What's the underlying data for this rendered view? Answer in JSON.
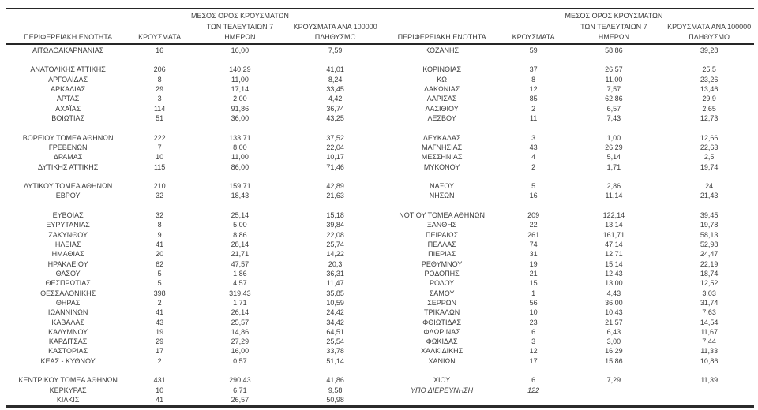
{
  "colors": {
    "text": "#3c3c3c",
    "rule": "#262626",
    "background": "#ffffff"
  },
  "headers": {
    "region": "ΠΕΡΙΦΕΡΕΙΑΚΗ ΕΝΟΤΗΤΑ",
    "cases": "ΚΡΟΥΣΜΑΤΑ",
    "avg7_line1": "ΜΕΣΟΣ ΟΡΟΣ ΚΡΟΥΣΜΑΤΩΝ",
    "avg7_line2": "ΤΩΝ ΤΕΛΕΥΤΑΙΩΝ 7",
    "avg7_line3": "ΗΜΕΡΩΝ",
    "per100k_line1": "ΚΡΟΥΣΜΑΤΑ ΑΝΑ 100000",
    "per100k_line2": "ΠΛΗΘΥΣΜΟ"
  },
  "left_table": {
    "rows": [
      {
        "region": "ΑΙΤΩΛΟΑΚΑΡΝΑΝΙΑΣ",
        "cases": "16",
        "avg7": "16,00",
        "per100k": "7,59"
      },
      null,
      {
        "region": "ΑΝΑΤΟΛΙΚΗΣ ΑΤΤΙΚΗΣ",
        "cases": "206",
        "avg7": "140,29",
        "per100k": "41,01"
      },
      {
        "region": "ΑΡΓΟΛΙΔΑΣ",
        "cases": "8",
        "avg7": "11,00",
        "per100k": "8,24"
      },
      {
        "region": "ΑΡΚΑΔΙΑΣ",
        "cases": "29",
        "avg7": "17,14",
        "per100k": "33,45"
      },
      {
        "region": "ΑΡΤΑΣ",
        "cases": "3",
        "avg7": "2,00",
        "per100k": "4,42"
      },
      {
        "region": "ΑΧΑΪΑΣ",
        "cases": "114",
        "avg7": "91,86",
        "per100k": "36,74"
      },
      {
        "region": "ΒΟΙΩΤΙΑΣ",
        "cases": "51",
        "avg7": "36,00",
        "per100k": "43,25"
      },
      null,
      {
        "region": "ΒΟΡΕΙΟΥ ΤΟΜΕΑ ΑΘΗΝΩΝ",
        "cases": "222",
        "avg7": "133,71",
        "per100k": "37,52"
      },
      {
        "region": "ΓΡΕΒΕΝΩΝ",
        "cases": "7",
        "avg7": "8,00",
        "per100k": "22,04"
      },
      {
        "region": "ΔΡΑΜΑΣ",
        "cases": "10",
        "avg7": "11,00",
        "per100k": "10,17"
      },
      {
        "region": "ΔΥΤΙΚΗΣ ΑΤΤΙΚΗΣ",
        "cases": "115",
        "avg7": "86,00",
        "per100k": "71,46"
      },
      null,
      {
        "region": "ΔΥΤΙΚΟΥ ΤΟΜΕΑ ΑΘΗΝΩΝ",
        "cases": "210",
        "avg7": "159,71",
        "per100k": "42,89"
      },
      {
        "region": "ΕΒΡΟΥ",
        "cases": "32",
        "avg7": "18,43",
        "per100k": "21,63"
      },
      null,
      {
        "region": "ΕΥΒΟΙΑΣ",
        "cases": "32",
        "avg7": "25,14",
        "per100k": "15,18"
      },
      {
        "region": "ΕΥΡΥΤΑΝΙΑΣ",
        "cases": "8",
        "avg7": "5,00",
        "per100k": "39,84"
      },
      {
        "region": "ΖΑΚΥΝΘΟΥ",
        "cases": "9",
        "avg7": "8,86",
        "per100k": "22,08"
      },
      {
        "region": "ΗΛΕΙΑΣ",
        "cases": "41",
        "avg7": "28,14",
        "per100k": "25,74"
      },
      {
        "region": "ΗΜΑΘΙΑΣ",
        "cases": "20",
        "avg7": "21,71",
        "per100k": "14,22"
      },
      {
        "region": "ΗΡΑΚΛΕΙΟΥ",
        "cases": "62",
        "avg7": "47,57",
        "per100k": "20,3"
      },
      {
        "region": "ΘΑΣΟΥ",
        "cases": "5",
        "avg7": "1,86",
        "per100k": "36,31"
      },
      {
        "region": "ΘΕΣΠΡΩΤΙΑΣ",
        "cases": "5",
        "avg7": "4,57",
        "per100k": "11,47"
      },
      {
        "region": "ΘΕΣΣΑΛΟΝΙΚΗΣ",
        "cases": "398",
        "avg7": "319,43",
        "per100k": "35,85"
      },
      {
        "region": "ΘΗΡΑΣ",
        "cases": "2",
        "avg7": "1,71",
        "per100k": "10,59"
      },
      {
        "region": "ΙΩΑΝΝΙΝΩΝ",
        "cases": "41",
        "avg7": "26,14",
        "per100k": "24,42"
      },
      {
        "region": "ΚΑΒΑΛΑΣ",
        "cases": "43",
        "avg7": "25,57",
        "per100k": "34,42"
      },
      {
        "region": "ΚΑΛΥΜΝΟΥ",
        "cases": "19",
        "avg7": "14,86",
        "per100k": "64,51"
      },
      {
        "region": "ΚΑΡΔΙΤΣΑΣ",
        "cases": "29",
        "avg7": "27,29",
        "per100k": "25,54"
      },
      {
        "region": "ΚΑΣΤΟΡΙΑΣ",
        "cases": "17",
        "avg7": "16,00",
        "per100k": "33,78"
      },
      {
        "region": "ΚΕΑΣ - ΚΥΘΝΟΥ",
        "cases": "2",
        "avg7": "0,57",
        "per100k": "51,14"
      },
      null,
      {
        "region": "ΚΕΝΤΡΙΚΟΥ ΤΟΜΕΑ ΑΘΗΝΩΝ",
        "cases": "431",
        "avg7": "290,43",
        "per100k": "41,86"
      },
      {
        "region": "ΚΕΡΚΥΡΑΣ",
        "cases": "10",
        "avg7": "6,71",
        "per100k": "9,58"
      },
      {
        "region": "ΚΙΛΚΙΣ",
        "cases": "41",
        "avg7": "26,57",
        "per100k": "50,98"
      }
    ]
  },
  "right_table": {
    "rows": [
      {
        "region": "ΚΟΖΑΝΗΣ",
        "cases": "59",
        "avg7": "58,86",
        "per100k": "39,28"
      },
      null,
      {
        "region": "ΚΟΡΙΝΘΙΑΣ",
        "cases": "37",
        "avg7": "26,57",
        "per100k": "25,5"
      },
      {
        "region": "ΚΩ",
        "cases": "8",
        "avg7": "11,00",
        "per100k": "23,26"
      },
      {
        "region": "ΛΑΚΩΝΙΑΣ",
        "cases": "12",
        "avg7": "7,57",
        "per100k": "13,46"
      },
      {
        "region": "ΛΑΡΙΣΑΣ",
        "cases": "85",
        "avg7": "62,86",
        "per100k": "29,9"
      },
      {
        "region": "ΛΑΣΙΘΙΟΥ",
        "cases": "2",
        "avg7": "6,57",
        "per100k": "2,65"
      },
      {
        "region": "ΛΕΣΒΟΥ",
        "cases": "11",
        "avg7": "7,43",
        "per100k": "12,73"
      },
      null,
      {
        "region": "ΛΕΥΚΑΔΑΣ",
        "cases": "3",
        "avg7": "1,00",
        "per100k": "12,66"
      },
      {
        "region": "ΜΑΓΝΗΣΙΑΣ",
        "cases": "43",
        "avg7": "26,29",
        "per100k": "22,63"
      },
      {
        "region": "ΜΕΣΣΗΝΙΑΣ",
        "cases": "4",
        "avg7": "5,14",
        "per100k": "2,5"
      },
      {
        "region": "ΜΥΚΟΝΟΥ",
        "cases": "2",
        "avg7": "1,71",
        "per100k": "19,74"
      },
      null,
      {
        "region": "ΝΑΞΟΥ",
        "cases": "5",
        "avg7": "2,86",
        "per100k": "24"
      },
      {
        "region": "ΝΗΣΩΝ",
        "cases": "16",
        "avg7": "11,14",
        "per100k": "21,43"
      },
      null,
      {
        "region": "ΝΟΤΙΟΥ ΤΟΜΕΑ ΑΘΗΝΩΝ",
        "cases": "209",
        "avg7": "122,14",
        "per100k": "39,45"
      },
      {
        "region": "ΞΑΝΘΗΣ",
        "cases": "22",
        "avg7": "13,14",
        "per100k": "19,78"
      },
      {
        "region": "ΠΕΙΡΑΙΩΣ",
        "cases": "261",
        "avg7": "161,71",
        "per100k": "58,13"
      },
      {
        "region": "ΠΕΛΛΑΣ",
        "cases": "74",
        "avg7": "47,14",
        "per100k": "52,98"
      },
      {
        "region": "ΠΙΕΡΙΑΣ",
        "cases": "31",
        "avg7": "12,71",
        "per100k": "24,47"
      },
      {
        "region": "ΡΕΘΥΜΝΟΥ",
        "cases": "19",
        "avg7": "15,14",
        "per100k": "22,19"
      },
      {
        "region": "ΡΟΔΟΠΗΣ",
        "cases": "21",
        "avg7": "12,43",
        "per100k": "18,74"
      },
      {
        "region": "ΡΟΔΟΥ",
        "cases": "15",
        "avg7": "13,00",
        "per100k": "12,52"
      },
      {
        "region": "ΣΑΜΟΥ",
        "cases": "1",
        "avg7": "4,43",
        "per100k": "3,03"
      },
      {
        "region": "ΣΕΡΡΩΝ",
        "cases": "56",
        "avg7": "36,00",
        "per100k": "31,74"
      },
      {
        "region": "ΤΡΙΚΑΛΩΝ",
        "cases": "10",
        "avg7": "10,43",
        "per100k": "7,63"
      },
      {
        "region": "ΦΘΙΩΤΙΔΑΣ",
        "cases": "23",
        "avg7": "21,57",
        "per100k": "14,54"
      },
      {
        "region": "ΦΛΩΡΙΝΑΣ",
        "cases": "6",
        "avg7": "6,43",
        "per100k": "11,67"
      },
      {
        "region": "ΦΩΚΙΔΑΣ",
        "cases": "3",
        "avg7": "3,00",
        "per100k": "7,44"
      },
      {
        "region": "ΧΑΛΚΙΔΙΚΗΣ",
        "cases": "12",
        "avg7": "16,29",
        "per100k": "11,33"
      },
      {
        "region": "ΧΑΝΙΩΝ",
        "cases": "17",
        "avg7": "15,86",
        "per100k": "10,86"
      },
      null,
      {
        "region": "ΧΙΟΥ",
        "cases": "6",
        "avg7": "7,29",
        "per100k": "11,39"
      },
      {
        "region": "ΥΠΟ ΔΙΕΡΕΥΝΗΣΗ",
        "cases": "122",
        "avg7": "",
        "per100k": "",
        "style": "italic"
      },
      null
    ]
  }
}
